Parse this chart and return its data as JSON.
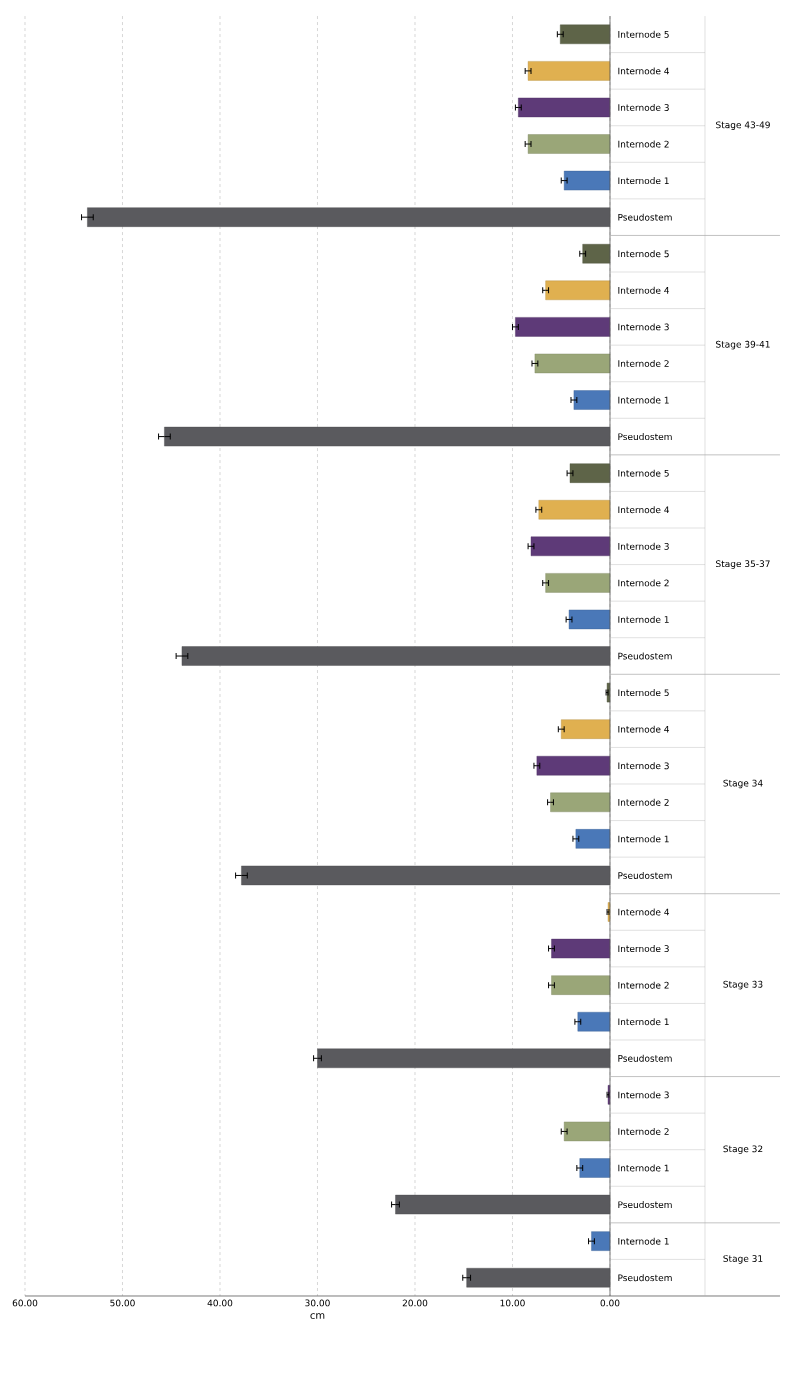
{
  "chart_data": {
    "type": "bar",
    "orientation": "horizontal",
    "xlabel": "cm",
    "categories": [
      "Internode 5",
      "Internode 4",
      "Internode 3",
      "Internode 2",
      "Internode 1",
      "Pseudostem",
      "Internode 5",
      "Internode 4",
      "Internode 3",
      "Internode 2",
      "Internode 1",
      "Pseudostem",
      "Internode 5",
      "Internode 4",
      "Internode 3",
      "Internode 2",
      "Internode 1",
      "Pseudostem",
      "Internode 5",
      "Internode 4",
      "Internode 3",
      "Internode 2",
      "Internode 1",
      "Pseudostem",
      "Internode 4",
      "Internode 3",
      "Internode 2",
      "Internode 1",
      "Pseudostem",
      "Internode 3",
      "Internode 2",
      "Internode 1",
      "Pseudostem",
      "Internode 1",
      "Pseudostem"
    ],
    "values": [
      5.1,
      8.4,
      9.4,
      8.4,
      4.7,
      53.6,
      2.8,
      6.6,
      9.7,
      7.7,
      3.7,
      45.7,
      4.1,
      7.3,
      8.1,
      6.6,
      4.2,
      43.9,
      0.3,
      5.0,
      7.5,
      6.1,
      3.5,
      37.8,
      0.2,
      6.0,
      6.0,
      3.3,
      30.0,
      0.2,
      4.7,
      3.1,
      22.0,
      1.9,
      14.7
    ],
    "errors": [
      0.3,
      0.3,
      0.3,
      0.3,
      0.3,
      0.6,
      0.3,
      0.3,
      0.3,
      0.3,
      0.3,
      0.6,
      0.3,
      0.3,
      0.3,
      0.3,
      0.3,
      0.6,
      0.1,
      0.3,
      0.3,
      0.3,
      0.3,
      0.6,
      0.1,
      0.3,
      0.3,
      0.3,
      0.4,
      0.1,
      0.3,
      0.3,
      0.4,
      0.3,
      0.4
    ],
    "colors": [
      "#5e6448",
      "#e0b050",
      "#5e3a78",
      "#9aa678",
      "#4a78b8",
      "#5a5a5e",
      "#5e6448",
      "#e0b050",
      "#5e3a78",
      "#9aa678",
      "#4a78b8",
      "#5a5a5e",
      "#5e6448",
      "#e0b050",
      "#5e3a78",
      "#9aa678",
      "#4a78b8",
      "#5a5a5e",
      "#5e6448",
      "#e0b050",
      "#5e3a78",
      "#9aa678",
      "#4a78b8",
      "#5a5a5e",
      "#e0b050",
      "#5e3a78",
      "#9aa678",
      "#4a78b8",
      "#5a5a5e",
      "#5e3a78",
      "#9aa678",
      "#4a78b8",
      "#5a5a5e",
      "#4a78b8",
      "#5a5a5e"
    ],
    "annotations": [
      "Stage 43-49",
      "Stage 39-41",
      "Stage 35-37",
      "Stage 34",
      "Stage 33",
      "Stage 32",
      "Stage 31"
    ],
    "xlim": [
      60,
      0
    ],
    "xticks": [
      {
        "value": 60,
        "label": "60.00"
      },
      {
        "value": 50,
        "label": "50.00"
      },
      {
        "value": 40,
        "label": "40.00"
      },
      {
        "value": 30,
        "label": "30.00"
      },
      {
        "value": 20,
        "label": "20.00"
      },
      {
        "value": 10,
        "label": "10.00"
      },
      {
        "value": 0,
        "label": "0.00"
      }
    ],
    "grid": "x"
  }
}
